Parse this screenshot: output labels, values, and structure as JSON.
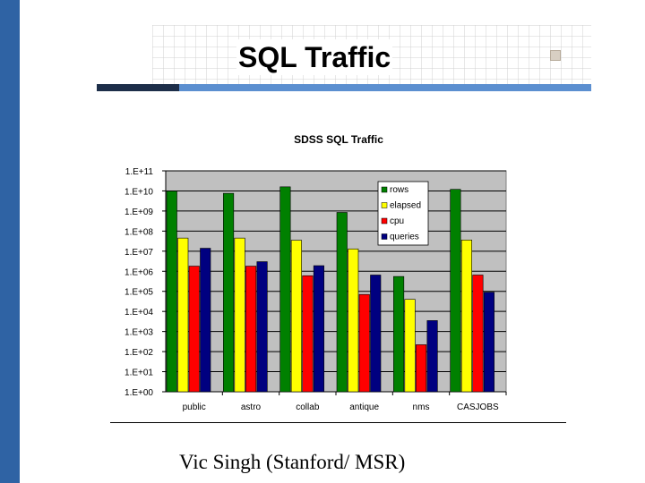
{
  "slide": {
    "title": "SQL Traffic",
    "footer": "Vic Singh (Stanford/ MSR)"
  },
  "colors": {
    "accent_blue": "#2f63a4",
    "dark_navy": "#1d2e49",
    "plot_bg": "#c0c0c0"
  },
  "chart_data": {
    "type": "bar",
    "title": "SDSS SQL Traffic",
    "xlabel": "",
    "ylabel": "",
    "log_scale": true,
    "ylim_log10": [
      0,
      11
    ],
    "yticks": [
      "1.E+00",
      "1.E+01",
      "1.E+02",
      "1.E+03",
      "1.E+04",
      "1.E+05",
      "1.E+06",
      "1.E+07",
      "1.E+08",
      "1.E+09",
      "1.E+10",
      "1.E+11"
    ],
    "categories": [
      "public",
      "astro",
      "collab",
      "antique",
      "nms",
      "CASJOBS"
    ],
    "grid": true,
    "legend_position": "top-right",
    "series": [
      {
        "name": "rows",
        "color": "#008000",
        "values": [
          9800000000.0,
          7600000000.0,
          16000000000.0,
          850000000.0,
          550000.0,
          12000000000.0
        ]
      },
      {
        "name": "elapsed",
        "color": "#ffff00",
        "values": [
          45000000.0,
          45000000.0,
          35000000.0,
          13000000.0,
          40000.0,
          36000000.0
        ]
      },
      {
        "name": "cpu",
        "color": "#ff0000",
        "values": [
          1800000.0,
          1800000.0,
          600000.0,
          70000.0,
          220.0,
          650000.0
        ]
      },
      {
        "name": "queries",
        "color": "#000080",
        "values": [
          14000000.0,
          3000000.0,
          1900000.0,
          650000.0,
          3500.0,
          90000.0
        ]
      }
    ]
  }
}
